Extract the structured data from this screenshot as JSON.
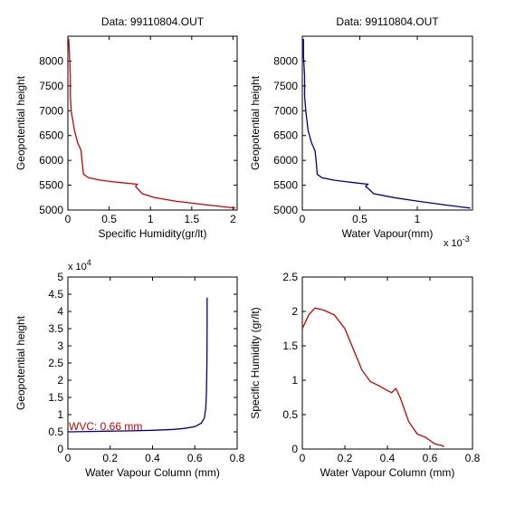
{
  "chart_data": [
    {
      "type": "line",
      "title": "Data: 99110804.OUT",
      "xlabel": "Specific Humidity(gr/lt)",
      "ylabel": "Geopotential height",
      "xlim": [
        0,
        2.05
      ],
      "ylim": [
        5000,
        8500
      ],
      "xticks": [
        0,
        0.5,
        1,
        1.5,
        2
      ],
      "xticklabels": [
        "0",
        "0.5",
        "1",
        "1.5",
        "2"
      ],
      "yticks": [
        5000,
        5500,
        6000,
        6500,
        7000,
        7500,
        8000
      ],
      "yticklabels": [
        "5000",
        "5500",
        "6000",
        "6500",
        "7000",
        "7500",
        "8000"
      ],
      "grid": false,
      "series": [
        {
          "color": "#cc0000",
          "x": [
            2.03,
            1.7,
            1.3,
            1.05,
            0.9,
            0.85,
            0.82,
            0.84,
            0.6,
            0.4,
            0.25,
            0.19,
            0.17,
            0.16,
            0.12,
            0.08,
            0.06,
            0.04,
            0.03,
            0.03,
            0.02,
            0.01
          ],
          "y": [
            5040,
            5100,
            5180,
            5250,
            5330,
            5420,
            5480,
            5520,
            5560,
            5600,
            5650,
            5720,
            6000,
            6200,
            6350,
            6600,
            6800,
            7000,
            7300,
            7700,
            8100,
            8450
          ]
        }
      ]
    },
    {
      "type": "line",
      "title": "Data: 99110804.OUT",
      "xlabel": "Water Vapour(mm)",
      "ylabel": "Geopotential height",
      "xlim": [
        0,
        0.00148
      ],
      "ylim": [
        5000,
        8500
      ],
      "xticks": [
        0,
        0.0005,
        0.001
      ],
      "xticklabels": [
        "0",
        "0.5",
        "1"
      ],
      "exponent_label": "x 10",
      "exponent_power": "-3",
      "yticks": [
        5000,
        5500,
        6000,
        6500,
        7000,
        7500,
        8000
      ],
      "yticklabels": [
        "5000",
        "5500",
        "6000",
        "6500",
        "7000",
        "7500",
        "8000"
      ],
      "grid": false,
      "series": [
        {
          "color": "#00008b",
          "x": [
            0.00146,
            0.00125,
            0.001,
            0.0008,
            0.00062,
            0.00058,
            0.00055,
            0.00057,
            0.00042,
            0.00028,
            0.00017,
            0.00013,
            0.00012,
            0.00011,
            8e-05,
            5e-05,
            4e-05,
            3e-05,
            2e-05,
            2e-05,
            1e-05,
            1e-05
          ],
          "y": [
            5040,
            5100,
            5180,
            5250,
            5330,
            5420,
            5480,
            5520,
            5560,
            5600,
            5650,
            5720,
            6000,
            6200,
            6350,
            6600,
            6800,
            7000,
            7300,
            7700,
            8100,
            8450
          ]
        }
      ]
    },
    {
      "type": "line",
      "title": "",
      "xlabel": "Water Vapour Column (mm)",
      "ylabel": "Geopotential height",
      "xlim": [
        0,
        0.8
      ],
      "ylim": [
        0,
        50000
      ],
      "xticks": [
        0,
        0.2,
        0.4,
        0.6,
        0.8
      ],
      "xticklabels": [
        "0",
        "0.2",
        "0.4",
        "0.6",
        "0.8"
      ],
      "yticks": [
        0,
        5000,
        10000,
        15000,
        20000,
        25000,
        30000,
        35000,
        40000,
        45000,
        50000
      ],
      "yticklabels": [
        "0",
        "0.5",
        "1",
        "1.5",
        "2",
        "2.5",
        "3",
        "3.5",
        "4",
        "4.5",
        "5"
      ],
      "exponent_label": "x 10",
      "exponent_power": "4",
      "annotation": "WVC: 0.66 mm",
      "annotation_color": "#cc0000",
      "grid": false,
      "series": [
        {
          "color": "#00008b",
          "x": [
            0,
            0.1,
            0.2,
            0.3,
            0.4,
            0.5,
            0.55,
            0.6,
            0.63,
            0.645,
            0.652,
            0.655,
            0.657,
            0.658,
            0.658
          ],
          "y": [
            5000,
            5100,
            5200,
            5300,
            5450,
            5700,
            6000,
            6500,
            7500,
            9000,
            12000,
            17000,
            25000,
            35000,
            44000
          ]
        }
      ]
    },
    {
      "type": "line",
      "title": "",
      "xlabel": "Water Vapour Column (mm)",
      "ylabel": "Specific Humidity (gr/lt)",
      "xlim": [
        0,
        0.8
      ],
      "ylim": [
        0,
        2.5
      ],
      "xticks": [
        0,
        0.2,
        0.4,
        0.6,
        0.8
      ],
      "xticklabels": [
        "0",
        "0.2",
        "0.4",
        "0.6",
        "0.8"
      ],
      "yticks": [
        0,
        0.5,
        1,
        1.5,
        2,
        2.5
      ],
      "yticklabels": [
        "0",
        "0.5",
        "1",
        "1.5",
        "2",
        "2.5"
      ],
      "grid": false,
      "series": [
        {
          "color": "#cc0000",
          "x": [
            0,
            0.03,
            0.06,
            0.1,
            0.15,
            0.2,
            0.24,
            0.28,
            0.32,
            0.36,
            0.4,
            0.42,
            0.44,
            0.46,
            0.5,
            0.54,
            0.58,
            0.62,
            0.64,
            0.66,
            0.665
          ],
          "y": [
            1.75,
            1.95,
            2.05,
            2.02,
            1.95,
            1.75,
            1.45,
            1.15,
            0.98,
            0.92,
            0.85,
            0.82,
            0.88,
            0.75,
            0.4,
            0.22,
            0.17,
            0.08,
            0.06,
            0.05,
            0.03
          ]
        }
      ]
    }
  ]
}
